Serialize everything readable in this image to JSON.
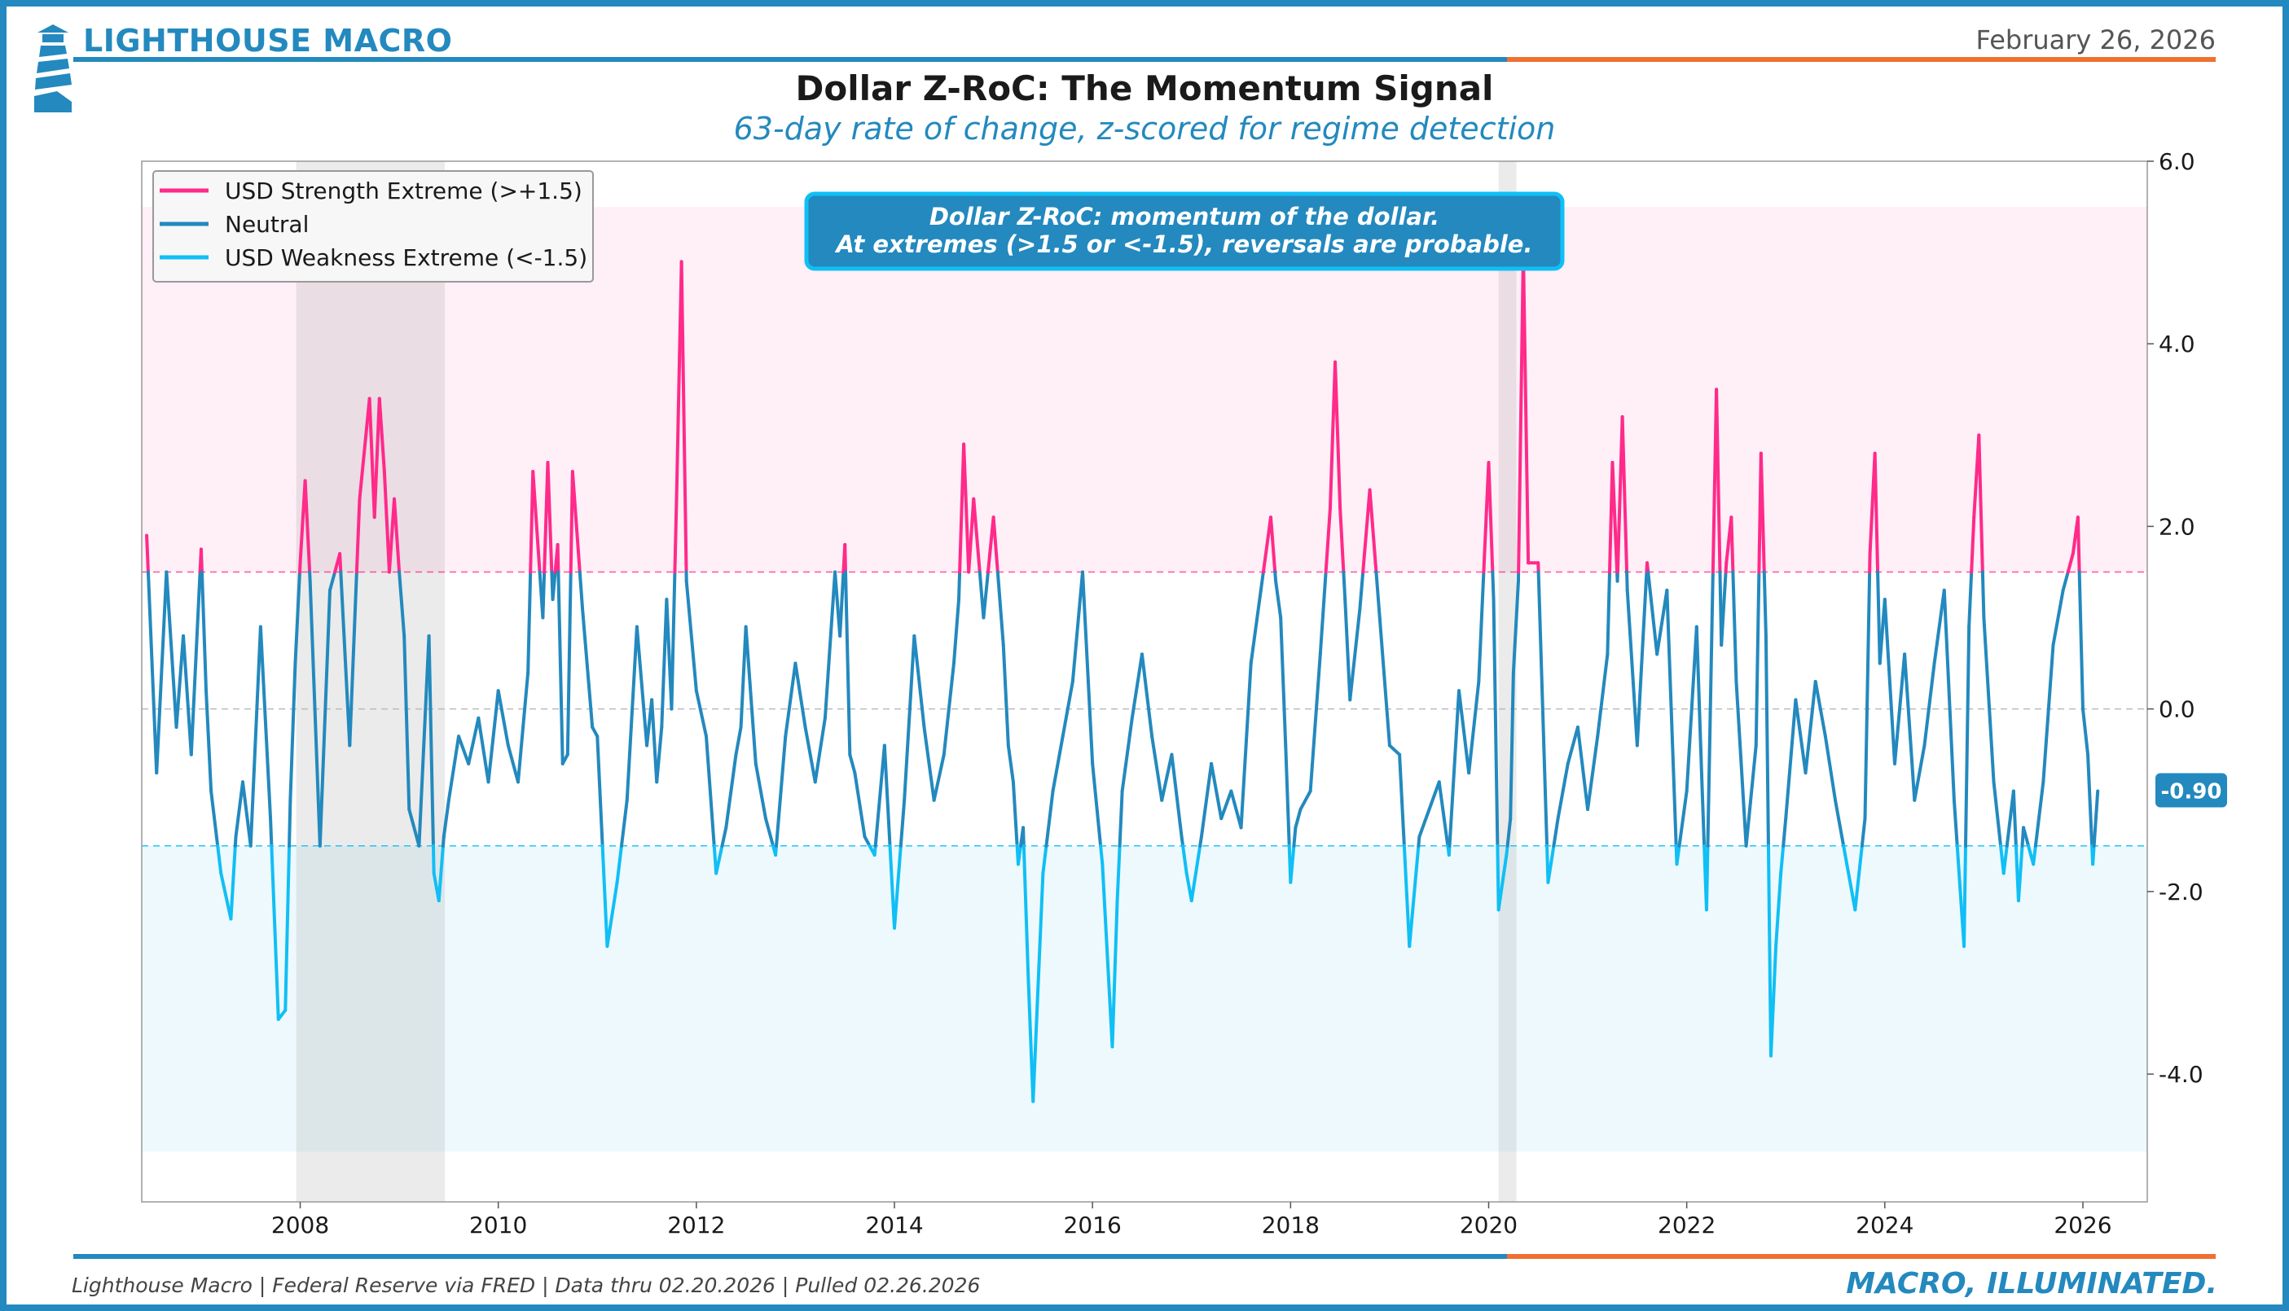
{
  "header": {
    "brand": "LIGHTHOUSE MACRO",
    "date": "February 26, 2026",
    "title": "Dollar Z-RoC: The Momentum Signal",
    "subtitle": "63-day rate of change, z-scored for regime detection"
  },
  "annotation": {
    "line1": "Dollar Z-RoC: momentum of the dollar.",
    "line2": "At extremes (>1.5 or <-1.5), reversals are probable."
  },
  "footer": {
    "source": "Lighthouse Macro | Federal Reserve via FRED | Data thru 02.20.2026 | Pulled 02.26.2026",
    "tagline": "MACRO, ILLUMINATED."
  },
  "colors": {
    "brand": "#2389BE",
    "accent": "#F07030",
    "strength": "#FF2A8A",
    "neutral": "#2389BE",
    "weakness": "#10BFF5"
  },
  "chart_data": {
    "type": "line",
    "title": "Dollar Z-RoC: The Momentum Signal",
    "ylim": [
      -5.4,
      6.0
    ],
    "xlim": [
      2006.4,
      2026.65
    ],
    "yticks": [
      6.0,
      4.0,
      2.0,
      0.0,
      -2.0,
      -4.0
    ],
    "ytick_labels": [
      "6.0",
      "4.0",
      "2.0",
      "0.0",
      "-2.0",
      "-4.0"
    ],
    "xticks": [
      2008,
      2010,
      2012,
      2014,
      2016,
      2018,
      2020,
      2022,
      2024,
      2026
    ],
    "xtick_labels": [
      "2008",
      "2010",
      "2012",
      "2014",
      "2016",
      "2018",
      "2020",
      "2022",
      "2024",
      "2026"
    ],
    "thresholds": {
      "upper": 1.5,
      "lower": -1.5
    },
    "zones": {
      "upper": [
        1.5,
        5.5
      ],
      "lower": [
        -4.85,
        -1.5
      ]
    },
    "recessions": [
      [
        2007.96,
        2009.46
      ],
      [
        2020.1,
        2020.28
      ]
    ],
    "legend": [
      {
        "label": "USD Strength Extreme (>+1.5)",
        "color": "#FF2A8A"
      },
      {
        "label": "Neutral",
        "color": "#2389BE"
      },
      {
        "label": "USD Weakness Extreme (<-1.5)",
        "color": "#10BFF5"
      }
    ],
    "last_value": -0.9,
    "last_value_label": "-0.90",
    "series": [
      {
        "name": "Dollar Z-RoC",
        "x": [
          2006.45,
          2006.55,
          2006.65,
          2006.75,
          2006.82,
          2006.9,
          2007.0,
          2007.05,
          2007.1,
          2007.2,
          2007.3,
          2007.35,
          2007.42,
          2007.5,
          2007.6,
          2007.7,
          2007.78,
          2007.85,
          2007.9,
          2007.95,
          2008.0,
          2008.05,
          2008.1,
          2008.2,
          2008.3,
          2008.4,
          2008.5,
          2008.6,
          2008.7,
          2008.75,
          2008.8,
          2008.85,
          2008.9,
          2008.95,
          2009.0,
          2009.05,
          2009.1,
          2009.2,
          2009.3,
          2009.35,
          2009.4,
          2009.45,
          2009.5,
          2009.6,
          2009.7,
          2009.8,
          2009.9,
          2010.0,
          2010.1,
          2010.2,
          2010.25,
          2010.3,
          2010.35,
          2010.45,
          2010.5,
          2010.55,
          2010.6,
          2010.65,
          2010.7,
          2010.75,
          2010.85,
          2010.95,
          2011.0,
          2011.1,
          2011.2,
          2011.3,
          2011.4,
          2011.5,
          2011.55,
          2011.6,
          2011.65,
          2011.7,
          2011.75,
          2011.8,
          2011.85,
          2011.9,
          2012.0,
          2012.1,
          2012.2,
          2012.3,
          2012.4,
          2012.45,
          2012.5,
          2012.6,
          2012.7,
          2012.8,
          2012.9,
          2013.0,
          2013.1,
          2013.2,
          2013.3,
          2013.4,
          2013.45,
          2013.5,
          2013.55,
          2013.6,
          2013.7,
          2013.8,
          2013.9,
          2014.0,
          2014.1,
          2014.2,
          2014.3,
          2014.4,
          2014.5,
          2014.6,
          2014.65,
          2014.7,
          2014.75,
          2014.8,
          2014.9,
          2015.0,
          2015.05,
          2015.1,
          2015.15,
          2015.2,
          2015.25,
          2015.3,
          2015.35,
          2015.4,
          2015.5,
          2015.6,
          2015.7,
          2015.8,
          2015.9,
          2016.0,
          2016.1,
          2016.2,
          2016.25,
          2016.3,
          2016.4,
          2016.5,
          2016.6,
          2016.7,
          2016.8,
          2016.9,
          2016.95,
          2017.0,
          2017.1,
          2017.2,
          2017.3,
          2017.4,
          2017.5,
          2017.6,
          2017.7,
          2017.8,
          2017.85,
          2017.9,
          2017.95,
          2018.0,
          2018.05,
          2018.1,
          2018.2,
          2018.3,
          2018.4,
          2018.45,
          2018.5,
          2018.55,
          2018.6,
          2018.7,
          2018.8,
          2018.9,
          2019.0,
          2019.1,
          2019.2,
          2019.3,
          2019.4,
          2019.5,
          2019.6,
          2019.7,
          2019.8,
          2019.9,
          2020.0,
          2020.05,
          2020.1,
          2020.18,
          2020.22,
          2020.25,
          2020.3,
          2020.35,
          2020.4,
          2020.5,
          2020.6,
          2020.7,
          2020.8,
          2020.9,
          2021.0,
          2021.1,
          2021.2,
          2021.25,
          2021.3,
          2021.35,
          2021.4,
          2021.5,
          2021.6,
          2021.7,
          2021.8,
          2021.9,
          2022.0,
          2022.1,
          2022.15,
          2022.2,
          2022.3,
          2022.35,
          2022.4,
          2022.45,
          2022.5,
          2022.6,
          2022.7,
          2022.75,
          2022.8,
          2022.85,
          2022.9,
          2022.95,
          2023.0,
          2023.1,
          2023.2,
          2023.3,
          2023.4,
          2023.5,
          2023.6,
          2023.7,
          2023.8,
          2023.85,
          2023.9,
          2023.95,
          2024.0,
          2024.1,
          2024.2,
          2024.3,
          2024.4,
          2024.5,
          2024.6,
          2024.7,
          2024.8,
          2024.85,
          2024.9,
          2024.95,
          2025.0,
          2025.1,
          2025.2,
          2025.3,
          2025.35,
          2025.4,
          2025.5,
          2025.6,
          2025.7,
          2025.8,
          2025.9,
          2025.95,
          2026.0,
          2026.05,
          2026.1,
          2026.15
        ],
        "values": [
          1.9,
          -0.7,
          1.5,
          -0.2,
          0.8,
          -0.5,
          1.75,
          0.2,
          -0.9,
          -1.8,
          -2.3,
          -1.4,
          -0.8,
          -1.5,
          0.9,
          -1.2,
          -3.4,
          -3.3,
          -1.0,
          0.5,
          1.6,
          2.5,
          1.4,
          -1.5,
          1.3,
          1.7,
          -0.4,
          2.3,
          3.4,
          2.1,
          3.4,
          2.6,
          1.5,
          2.3,
          1.5,
          0.8,
          -1.1,
          -1.5,
          0.8,
          -1.8,
          -2.1,
          -1.4,
          -1.0,
          -0.3,
          -0.6,
          -0.1,
          -0.8,
          0.2,
          -0.4,
          -0.8,
          -0.2,
          0.4,
          2.6,
          1.0,
          2.7,
          1.2,
          1.8,
          -0.6,
          -0.5,
          2.6,
          1.1,
          -0.2,
          -0.3,
          -2.6,
          -1.9,
          -1.0,
          0.9,
          -0.4,
          0.1,
          -0.8,
          -0.2,
          1.2,
          0.0,
          2.3,
          4.9,
          1.4,
          0.2,
          -0.3,
          -1.8,
          -1.3,
          -0.5,
          -0.2,
          0.9,
          -0.6,
          -1.2,
          -1.6,
          -0.3,
          0.5,
          -0.2,
          -0.8,
          -0.1,
          1.5,
          0.8,
          1.8,
          -0.5,
          -0.7,
          -1.4,
          -1.6,
          -0.4,
          -2.4,
          -1.0,
          0.8,
          -0.2,
          -1.0,
          -0.5,
          0.5,
          1.2,
          2.9,
          1.5,
          2.3,
          1.0,
          2.1,
          1.4,
          0.7,
          -0.4,
          -0.8,
          -1.7,
          -1.3,
          -2.9,
          -4.3,
          -1.8,
          -0.9,
          -0.3,
          0.3,
          1.5,
          -0.6,
          -1.7,
          -3.7,
          -2.1,
          -0.9,
          -0.1,
          0.6,
          -0.3,
          -1.0,
          -0.5,
          -1.4,
          -1.8,
          -2.1,
          -1.4,
          -0.6,
          -1.2,
          -0.9,
          -1.3,
          0.5,
          1.3,
          2.1,
          1.4,
          1.0,
          -0.4,
          -1.9,
          -1.3,
          -1.1,
          -0.9,
          0.6,
          2.2,
          3.8,
          2.2,
          1.2,
          0.1,
          1.1,
          2.4,
          1.0,
          -0.4,
          -0.5,
          -2.6,
          -1.4,
          -1.1,
          -0.8,
          -1.6,
          0.2,
          -0.7,
          0.3,
          2.7,
          1.2,
          -2.2,
          -1.6,
          -1.2,
          0.4,
          1.4,
          5.0,
          1.6,
          1.6,
          -1.9,
          -1.2,
          -0.6,
          -0.2,
          -1.1,
          -0.3,
          0.6,
          2.7,
          1.4,
          3.2,
          1.3,
          -0.4,
          1.6,
          0.6,
          1.3,
          -1.7,
          -0.9,
          0.9,
          -0.7,
          -2.2,
          3.5,
          0.7,
          1.6,
          2.1,
          0.3,
          -1.5,
          -0.4,
          2.8,
          0.8,
          -3.8,
          -2.6,
          -1.8,
          -1.2,
          0.1,
          -0.7,
          0.3,
          -0.3,
          -1.0,
          -1.6,
          -2.2,
          -1.2,
          1.7,
          2.8,
          0.5,
          1.2,
          -0.6,
          0.6,
          -1.0,
          -0.4,
          0.5,
          1.3,
          -1.0,
          -2.6,
          0.9,
          2.1,
          3.0,
          1.0,
          -0.8,
          -1.8,
          -0.9,
          -2.1,
          -1.3,
          -1.7,
          -0.8,
          0.7,
          1.3,
          1.7,
          2.1,
          0.0,
          -0.5,
          -1.7,
          -0.9
        ]
      }
    ]
  }
}
